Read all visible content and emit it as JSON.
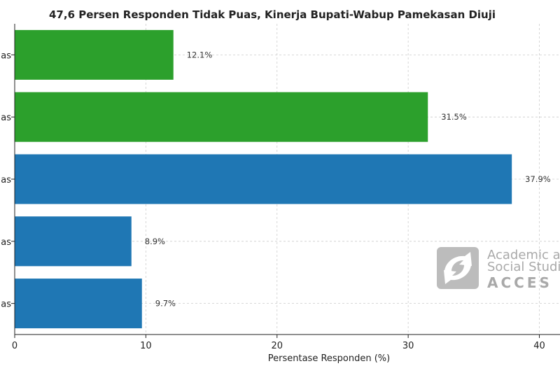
{
  "chart_data": {
    "type": "bar",
    "orientation": "horizontal",
    "title": "47,6 Persen Responden Tidak Puas, Kinerja Bupati-Wabup Pamekasan Diuji",
    "xlabel": "Persentase Responden (%)",
    "ylabel": "",
    "xlim": [
      0,
      42
    ],
    "x_ticks": [
      0,
      10,
      20,
      30,
      40
    ],
    "grid": true,
    "categories": [
      "as",
      "as",
      "as",
      "as",
      "as"
    ],
    "values": [
      12.1,
      31.5,
      37.9,
      8.9,
      9.7
    ],
    "data_labels": [
      "12.1%",
      "31.5%",
      "37.9%",
      "8.9%",
      "9.7%"
    ],
    "colors": [
      "#2ca02c",
      "#2ca02c",
      "#1f77b4",
      "#1f77b4",
      "#1f77b4"
    ]
  },
  "watermark": {
    "line1": "Academic a",
    "line2": "Social Studi",
    "line3": "ACCES"
  }
}
